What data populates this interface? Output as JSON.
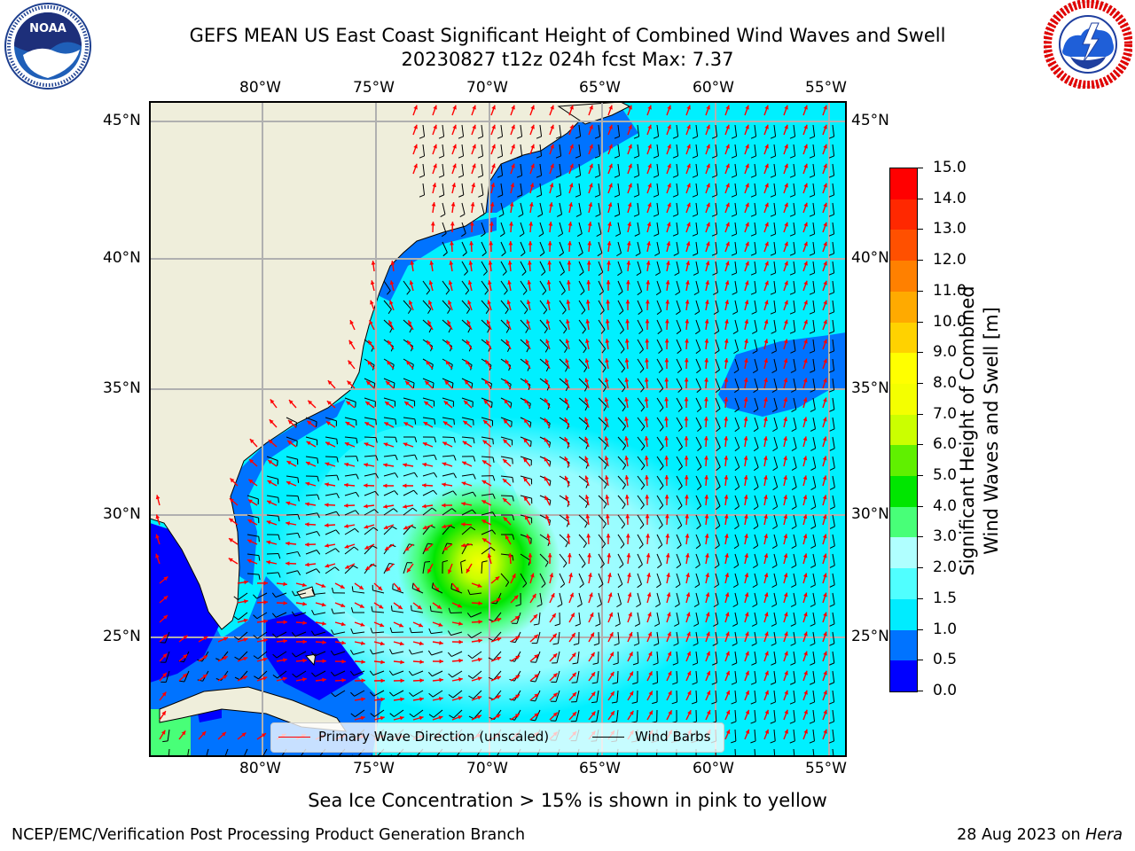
{
  "header": {
    "title_line1": "GEFS MEAN US East Coast Significant Height of Combined Wind Waves and Swell",
    "title_line2": "20230827 t12z 024h fcst   Max: 7.37"
  },
  "logos": {
    "left": {
      "name": "NOAA",
      "ring_text": "NATIONAL OCEANIC AND ATMOSPHERIC ADMINISTRATION · U.S. DEPARTMENT OF COMMERCE"
    },
    "right": {
      "ring_text": "NATIONAL WEATHER SERVICE"
    }
  },
  "map": {
    "lon_labels": [
      "80°W",
      "75°W",
      "70°W",
      "65°W",
      "60°W",
      "55°W"
    ],
    "lat_labels": [
      "45°N",
      "40°N",
      "35°N",
      "30°N",
      "25°N"
    ],
    "legend": {
      "wave_direction": "Primary Wave Direction (unscaled)",
      "wind_barbs": "Wind Barbs"
    },
    "colors": {
      "land": "#efeedb",
      "wave_arrow": "#ff0000",
      "barb": "#000000"
    }
  },
  "colorbar": {
    "label_line1": "Significant Height of Combined",
    "label_line2": "Wind Waves and Swell [m]",
    "ticks": [
      "0.0",
      "0.5",
      "1.0",
      "1.5",
      "2.0",
      "3.0",
      "4.0",
      "5.0",
      "6.0",
      "7.0",
      "8.0",
      "9.0",
      "10.0",
      "11.0",
      "12.0",
      "13.0",
      "14.0",
      "15.0"
    ],
    "colors": [
      "#0000ff",
      "#0073ff",
      "#00ecff",
      "#50ffff",
      "#b0ffff",
      "#48ff78",
      "#00e600",
      "#60f000",
      "#cbff00",
      "#f4ff00",
      "#ffff00",
      "#ffd200",
      "#ffaa00",
      "#ff8000",
      "#ff5000",
      "#ff2800",
      "#ff0000"
    ]
  },
  "notes": {
    "ice": "Sea Ice Concentration > 15% is shown in pink to yellow"
  },
  "footer": {
    "left": "NCEP/EMC/Verification Post Processing Product Generation Branch",
    "right_prefix": "28 Aug 2023 on ",
    "right_machine": "Hera"
  }
}
